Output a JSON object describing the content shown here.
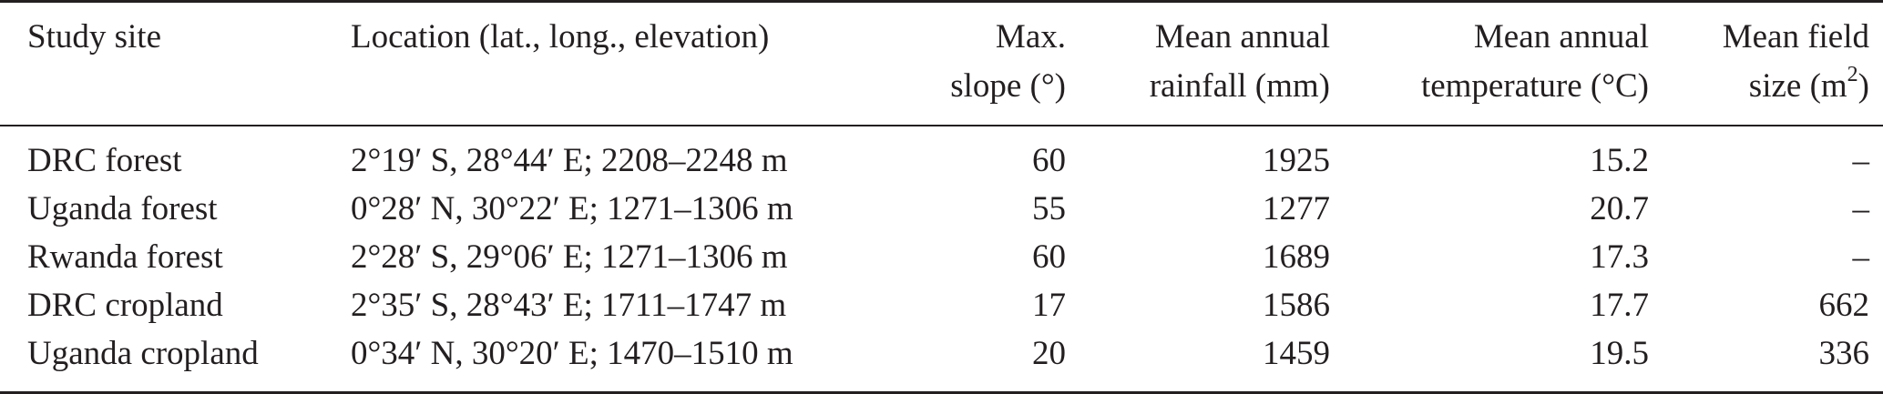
{
  "table": {
    "headers": {
      "study_site": "Study site",
      "location": "Location (lat., long., elevation)",
      "max_slope_line1": "Max.",
      "max_slope_line2": "slope (°)",
      "rainfall_line1": "Mean annual",
      "rainfall_line2": "rainfall (mm)",
      "temperature_line1": "Mean annual",
      "temperature_line2": "temperature (°C)",
      "field_size_line1": "Mean field",
      "field_size_line2_base": "size (m",
      "field_size_line2_sup": "2",
      "field_size_line2_end": ")"
    },
    "rows": [
      {
        "site": "DRC forest",
        "location": "2°19′ S, 28°44′ E; 2208–2248 m",
        "slope": "60",
        "rainfall": "1925",
        "temperature": "15.2",
        "field_size": "–"
      },
      {
        "site": "Uganda forest",
        "location": "0°28′ N, 30°22′ E; 1271–1306 m",
        "slope": "55",
        "rainfall": "1277",
        "temperature": "20.7",
        "field_size": "–"
      },
      {
        "site": "Rwanda forest",
        "location": "2°28′ S, 29°06′ E; 1271–1306 m",
        "slope": "60",
        "rainfall": "1689",
        "temperature": "17.3",
        "field_size": "–"
      },
      {
        "site": "DRC cropland",
        "location": "2°35′ S, 28°43′ E; 1711–1747 m",
        "slope": "17",
        "rainfall": "1586",
        "temperature": "17.7",
        "field_size": "662"
      },
      {
        "site": "Uganda cropland",
        "location": "0°34′ N, 30°20′ E; 1470–1510 m",
        "slope": "20",
        "rainfall": "1459",
        "temperature": "19.5",
        "field_size": "336"
      }
    ]
  }
}
